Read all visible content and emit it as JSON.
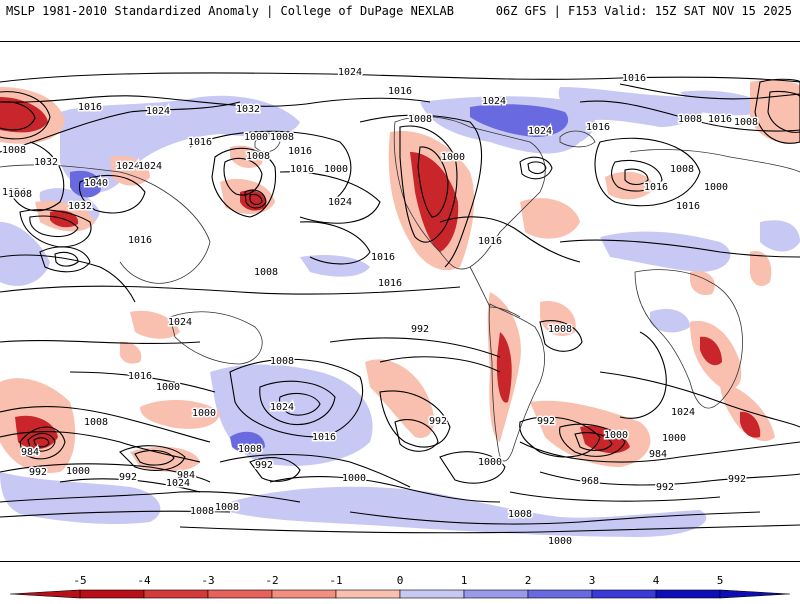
{
  "header": {
    "left": "MSLP 1981-2010 Standardized Anomaly | College of DuPage NEXLAB",
    "right": "06Z GFS | F153 Valid: 15Z SAT NOV 15 2025"
  },
  "colorbar": {
    "ticks": [
      "-5",
      "-4",
      "-3",
      "-2",
      "-1",
      "0",
      "1",
      "2",
      "3",
      "4",
      "5"
    ],
    "neg_colors": [
      "#b80f18",
      "#d33a3a",
      "#e6625a",
      "#f2907f",
      "#f9c0b0"
    ],
    "pos_colors": [
      "#c8c8f5",
      "#9a9aeb",
      "#6a6ae0",
      "#3a3ad6",
      "#0e0eb8"
    ]
  },
  "colors": {
    "neg_light": "#f9c0b0",
    "neg_mid": "#f2907f",
    "neg_strong": "#e6625a",
    "neg_deep": "#c8262a",
    "pos_light": "#c8c8f5",
    "pos_mid": "#9a9aeb",
    "pos_strong": "#6a6ae0"
  },
  "isobar_labels": [
    "1024",
    "1016",
    "1016",
    "1032",
    "1024",
    "1008",
    "1016",
    "1000",
    "1024",
    "1008",
    "1024",
    "1016",
    "1008",
    "1000",
    "1024",
    "1016",
    "1008",
    "1000",
    "1016",
    "1024",
    "1008",
    "1016",
    "1032",
    "1040",
    "1024",
    "1032",
    "1024",
    "1016",
    "1016",
    "1008",
    "1008",
    "1016",
    "1008",
    "1016",
    "1016",
    "1000",
    "992",
    "1024",
    "1016",
    "992",
    "1008",
    "1008",
    "1000",
    "1024",
    "1008",
    "984",
    "992",
    "1000",
    "992",
    "984",
    "992",
    "1008",
    "1016",
    "1000",
    "1008",
    "1000",
    "992",
    "1000",
    "992",
    "1000",
    "968",
    "984",
    "992",
    "1024",
    "1008",
    "1000",
    "1008",
    "1016",
    "1008",
    "1016",
    "1000",
    "1008",
    "992",
    "1024"
  ]
}
